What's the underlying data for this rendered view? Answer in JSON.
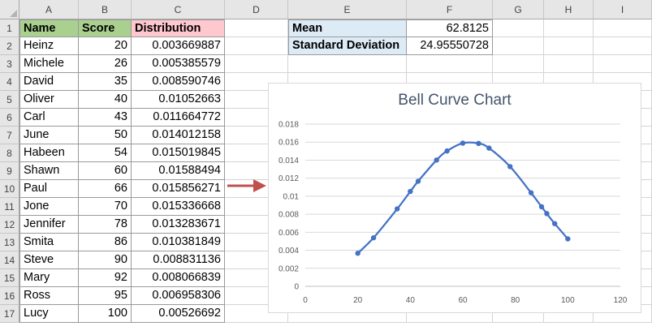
{
  "columns": [
    "A",
    "B",
    "C",
    "D",
    "E",
    "F",
    "G",
    "H",
    "I"
  ],
  "rows": [
    "1",
    "2",
    "3",
    "4",
    "5",
    "6",
    "7",
    "8",
    "9",
    "10",
    "11",
    "12",
    "13",
    "14",
    "15",
    "16",
    "17"
  ],
  "table": {
    "headers": [
      "Name",
      "Score",
      "Distribution"
    ],
    "header_colors": [
      "#a9d08e",
      "#a9d08e",
      "#ffc7ce"
    ],
    "data": [
      [
        "Heinz",
        "20",
        "0.003669887"
      ],
      [
        "Michele",
        "26",
        "0.005385579"
      ],
      [
        "David",
        "35",
        "0.008590746"
      ],
      [
        "Oliver",
        "40",
        "0.01052663"
      ],
      [
        "Carl",
        "43",
        "0.011664772"
      ],
      [
        "June",
        "50",
        "0.014012158"
      ],
      [
        "Habeen",
        "54",
        "0.015019845"
      ],
      [
        "Shawn",
        "60",
        "0.01588494"
      ],
      [
        "Paul",
        "66",
        "0.015856271"
      ],
      [
        "Jone",
        "70",
        "0.015336668"
      ],
      [
        "Jennifer",
        "78",
        "0.013283671"
      ],
      [
        "Smita",
        "86",
        "0.010381849"
      ],
      [
        "Steve",
        "90",
        "0.008831136"
      ],
      [
        "Mary",
        "92",
        "0.008066839"
      ],
      [
        "Ross",
        "95",
        "0.006958306"
      ],
      [
        "Lucy",
        "100",
        "0.00526692"
      ]
    ]
  },
  "stats": {
    "bg_color": "#ddebf7",
    "mean_label": "Mean",
    "mean_value": "62.8125",
    "sd_label": "Standard Deviation",
    "sd_value": "24.95550728"
  },
  "arrow_color": "#c0504d",
  "chart_data": {
    "type": "scatter",
    "style": "smooth line with markers",
    "title": "Bell Curve Chart",
    "xlim": [
      0,
      120
    ],
    "ylim": [
      0,
      0.018
    ],
    "x_ticks": [
      "0",
      "20",
      "40",
      "60",
      "80",
      "100",
      "120"
    ],
    "y_ticks": [
      "0",
      "0.002",
      "0.004",
      "0.006",
      "0.008",
      "0.01",
      "0.012",
      "0.014",
      "0.016",
      "0.018"
    ],
    "grid": "horizontal",
    "legend": "none",
    "color": "#4472c4",
    "series": [
      {
        "x": [
          20,
          26,
          35,
          40,
          43,
          50,
          54,
          60,
          66,
          70,
          78,
          86,
          90,
          92,
          95,
          100
        ],
        "y": [
          0.003669887,
          0.005385579,
          0.008590746,
          0.01052663,
          0.011664772,
          0.014012158,
          0.015019845,
          0.01588494,
          0.015856271,
          0.015336668,
          0.013283671,
          0.010381849,
          0.008831136,
          0.008066839,
          0.006958306,
          0.00526692
        ]
      }
    ]
  }
}
